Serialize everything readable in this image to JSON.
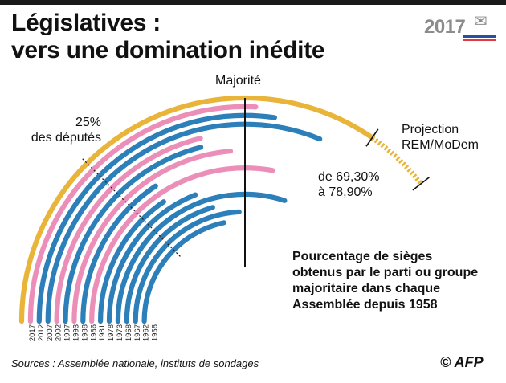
{
  "header": {
    "title_line1": "Législatives :",
    "title_line2": "vers une domination inédite",
    "badge_year": "2017",
    "badge_icon": "ballot-envelope-icon"
  },
  "colors": {
    "yellow": "#e9b43a",
    "pink": "#ec8fb8",
    "blue": "#2c7fb8",
    "majority_line": "#111111",
    "flag_blue": "#2b4ea2",
    "flag_red": "#e03a3e"
  },
  "chart_data": {
    "type": "radial-bar",
    "title": "Législatives : vers une domination inédite",
    "majority_label": "Majorité",
    "majority_value": 50,
    "quarter_value": 25,
    "quarter_label_line1": "25%",
    "quarter_label_line2": "des députés",
    "projection_label_line1": "Projection",
    "projection_label_line2": "REM/MoDem",
    "projection_range_line1": "de 69,30%",
    "projection_range_line2": "à 78,90%",
    "projection_range": [
      69.3,
      78.9
    ],
    "description_lines": [
      "Pourcentage de sièges",
      "obtenus par le parti ou groupe",
      "majoritaire dans chaque",
      "Assemblée depuis 1958"
    ],
    "years": [
      "2017",
      "2012",
      "2007",
      "2002",
      "1997",
      "1993",
      "1988",
      "1986",
      "1981",
      "1978",
      "1973",
      "1968",
      "1967",
      "1962",
      "1958"
    ],
    "series": [
      {
        "year": "2017",
        "party": "yellow",
        "value": 69.3
      },
      {
        "year": "2012",
        "party": "pink",
        "value": 51.6
      },
      {
        "year": "2007",
        "party": "blue",
        "value": 54.6
      },
      {
        "year": "2002",
        "party": "blue",
        "value": 62.4
      },
      {
        "year": "1997",
        "party": "pink",
        "value": 42.4
      },
      {
        "year": "1993",
        "party": "blue",
        "value": 42.1
      },
      {
        "year": "1988",
        "party": "pink",
        "value": 47.3
      },
      {
        "year": "1986",
        "party": "blue",
        "value": 31.4
      },
      {
        "year": "1981",
        "party": "pink",
        "value": 55.8
      },
      {
        "year": "1978",
        "party": "blue",
        "value": 31.0
      },
      {
        "year": "1973",
        "party": "blue",
        "value": 38.1
      },
      {
        "year": "1968",
        "party": "blue",
        "value": 60.1
      },
      {
        "year": "1967",
        "party": "blue",
        "value": 41.2
      },
      {
        "year": "1962",
        "party": "blue",
        "value": 48.3
      },
      {
        "year": "1958",
        "party": "blue",
        "value": 43.3
      }
    ]
  },
  "footer": {
    "source": "Sources : Assemblée nationale, instituts de sondages",
    "credit": "© AFP"
  }
}
